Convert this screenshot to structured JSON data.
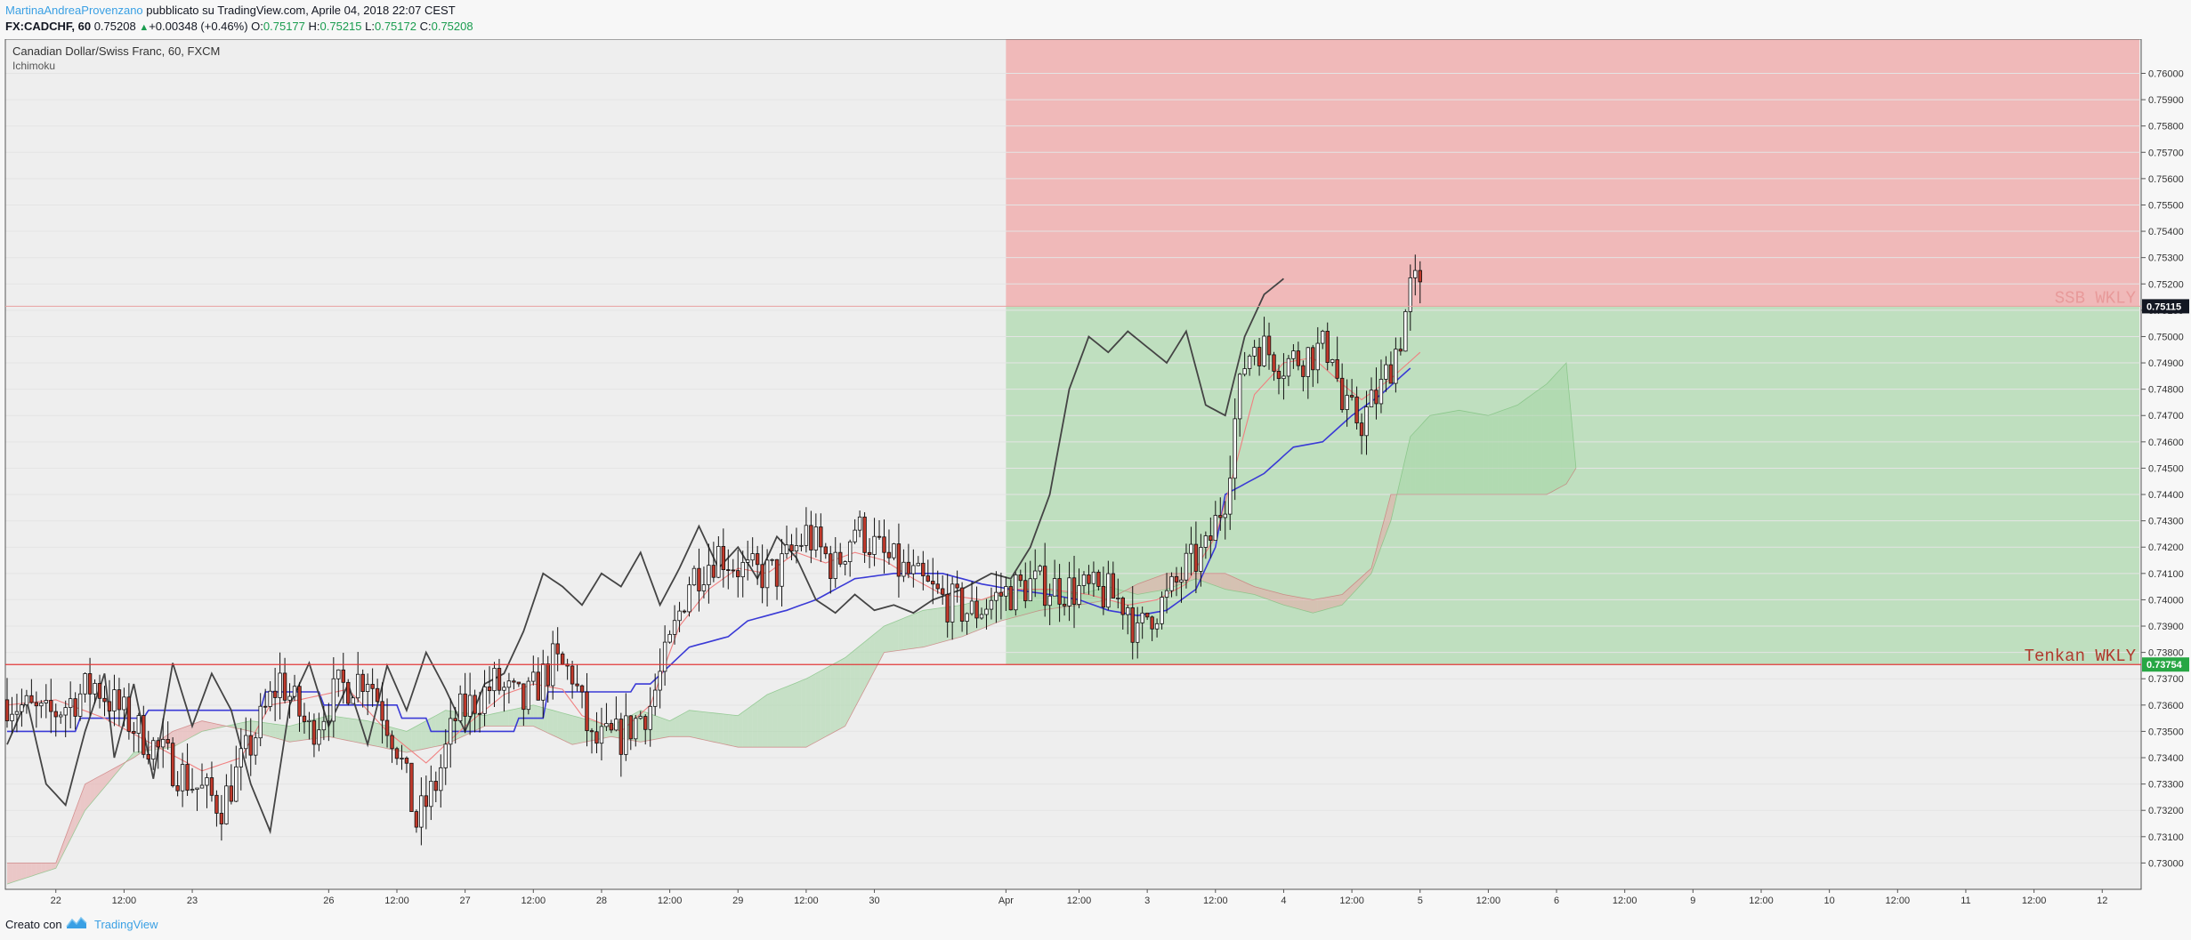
{
  "header": {
    "author": "MartinaAndreaProvenzano",
    "published_text": " pubblicato su TradingView.com, Aprile 04, 2018 22:07 CEST",
    "symbol": "FX:CADCHF, 60",
    "last_price": "0.75208",
    "change_arrow": "▲",
    "change": "+0.00348 (+0.46%)",
    "open_label": "O:",
    "open": "0.75177",
    "high_label": "H:",
    "high": "0.75215",
    "low_label": "L:",
    "low": "0.75172",
    "close_label": "C:",
    "close": "0.75208"
  },
  "footer": {
    "created_with": "Creato con",
    "brand": "TradingView"
  },
  "colors": {
    "pane_bg": "#eeeeee",
    "risk_zone": "#f0b9b9",
    "reward_zone": "#bfdfbf",
    "bull_candle": "#ffffff",
    "bear_candle": "#c0392b",
    "tenkan": "#f08080",
    "kijun": "#3a3ad6",
    "chikou": "#444444",
    "kumo_bull": "#a5d6a5",
    "kumo_bear": "#e8a8a8",
    "ssb_label": "#e89a9a",
    "tenkan_label": "#b03a2e",
    "tenkan_tag": "#27a744",
    "current_tag": "#131722"
  },
  "chart_data": {
    "type": "candlestick",
    "title": "Canadian Dollar/Swiss Franc, 60, FXCM",
    "indicator": "Ichimoku",
    "ylim": [
      0.729,
      0.7613
    ],
    "y_ticks": [
      0.73,
      0.731,
      0.732,
      0.733,
      0.734,
      0.735,
      0.736,
      0.737,
      0.738,
      0.739,
      0.74,
      0.741,
      0.742,
      0.743,
      0.744,
      0.745,
      0.746,
      0.747,
      0.748,
      0.749,
      0.75,
      0.751,
      0.752,
      0.753,
      0.754,
      0.755,
      0.756,
      0.757,
      0.758,
      0.759,
      0.76
    ],
    "y_tick_labels": [
      "0.73000",
      "0.73100",
      "0.73200",
      "0.73300",
      "0.73400",
      "0.73500",
      "0.73600",
      "0.73700",
      "0.73800",
      "0.73900",
      "0.74000",
      "0.74100",
      "0.74200",
      "0.74300",
      "0.74400",
      "0.74500",
      "0.74600",
      "0.74700",
      "0.74800",
      "0.74900",
      "0.75000",
      "0.75100",
      "0.75200",
      "0.75300",
      "0.75400",
      "0.75500",
      "0.75600",
      "0.75700",
      "0.75800",
      "0.75900",
      "0.76000"
    ],
    "x_ticks": [
      {
        "label": "22",
        "bar": 10
      },
      {
        "label": "12:00",
        "bar": 24
      },
      {
        "label": "23",
        "bar": 38
      },
      {
        "label": "26",
        "bar": 66
      },
      {
        "label": "12:00",
        "bar": 80
      },
      {
        "label": "27",
        "bar": 94
      },
      {
        "label": "12:00",
        "bar": 108
      },
      {
        "label": "28",
        "bar": 122
      },
      {
        "label": "12:00",
        "bar": 136
      },
      {
        "label": "29",
        "bar": 150
      },
      {
        "label": "12:00",
        "bar": 164
      },
      {
        "label": "30",
        "bar": 178
      },
      {
        "label": "Apr",
        "bar": 205
      },
      {
        "label": "12:00",
        "bar": 220
      },
      {
        "label": "3",
        "bar": 234
      },
      {
        "label": "12:00",
        "bar": 248
      },
      {
        "label": "4",
        "bar": 262
      },
      {
        "label": "12:00",
        "bar": 276
      },
      {
        "label": "5",
        "bar": 290
      },
      {
        "label": "12:00",
        "bar": 304
      },
      {
        "label": "6",
        "bar": 318
      },
      {
        "label": "12:00",
        "bar": 332
      },
      {
        "label": "9",
        "bar": 346
      },
      {
        "label": "12:00",
        "bar": 360
      },
      {
        "label": "10",
        "bar": 374
      },
      {
        "label": "12:00",
        "bar": 388
      },
      {
        "label": "11",
        "bar": 402
      },
      {
        "label": "12:00",
        "bar": 416
      },
      {
        "label": "12",
        "bar": 430
      }
    ],
    "candle_keypoints": [
      [
        0,
        0.7362
      ],
      [
        8,
        0.7355
      ],
      [
        18,
        0.7368
      ],
      [
        28,
        0.7348
      ],
      [
        38,
        0.733
      ],
      [
        44,
        0.7322
      ],
      [
        50,
        0.7345
      ],
      [
        56,
        0.737
      ],
      [
        62,
        0.735
      ],
      [
        68,
        0.7366
      ],
      [
        74,
        0.7372
      ],
      [
        80,
        0.7345
      ],
      [
        84,
        0.7315
      ],
      [
        88,
        0.733
      ],
      [
        92,
        0.7355
      ],
      [
        100,
        0.7368
      ],
      [
        106,
        0.736
      ],
      [
        112,
        0.7376
      ],
      [
        116,
        0.7372
      ],
      [
        120,
        0.7345
      ],
      [
        126,
        0.7348
      ],
      [
        132,
        0.736
      ],
      [
        136,
        0.7382
      ],
      [
        140,
        0.7408
      ],
      [
        146,
        0.7418
      ],
      [
        152,
        0.741
      ],
      [
        158,
        0.741
      ],
      [
        164,
        0.7425
      ],
      [
        170,
        0.7412
      ],
      [
        174,
        0.7428
      ],
      [
        180,
        0.7416
      ],
      [
        186,
        0.7408
      ],
      [
        192,
        0.74
      ],
      [
        198,
        0.7395
      ],
      [
        204,
        0.7402
      ],
      [
        210,
        0.7406
      ],
      [
        218,
        0.7404
      ],
      [
        226,
        0.7402
      ],
      [
        230,
        0.7398
      ],
      [
        232,
        0.7385
      ],
      [
        234,
        0.7394
      ],
      [
        238,
        0.74
      ],
      [
        242,
        0.7412
      ],
      [
        246,
        0.7418
      ],
      [
        250,
        0.744
      ],
      [
        252,
        0.7468
      ],
      [
        254,
        0.749
      ],
      [
        256,
        0.7498
      ],
      [
        262,
        0.749
      ],
      [
        268,
        0.7494
      ],
      [
        272,
        0.7496
      ],
      [
        274,
        0.7472
      ],
      [
        278,
        0.7468
      ],
      [
        282,
        0.748
      ],
      [
        286,
        0.75
      ],
      [
        288,
        0.7518
      ],
      [
        290,
        0.75208
      ]
    ],
    "kijun_keypoints": [
      [
        0,
        0.735
      ],
      [
        14,
        0.735
      ],
      [
        15,
        0.7355
      ],
      [
        28,
        0.7355
      ],
      [
        29,
        0.7358
      ],
      [
        52,
        0.7358
      ],
      [
        53,
        0.7365
      ],
      [
        64,
        0.7365
      ],
      [
        65,
        0.736
      ],
      [
        80,
        0.736
      ],
      [
        81,
        0.7355
      ],
      [
        86,
        0.7355
      ],
      [
        87,
        0.735
      ],
      [
        104,
        0.735
      ],
      [
        105,
        0.7355
      ],
      [
        110,
        0.7355
      ],
      [
        111,
        0.7365
      ],
      [
        128,
        0.7365
      ],
      [
        129,
        0.7368
      ],
      [
        132,
        0.7368
      ],
      [
        140,
        0.7382
      ],
      [
        148,
        0.7386
      ],
      [
        152,
        0.7392
      ],
      [
        160,
        0.7396
      ],
      [
        166,
        0.74
      ],
      [
        174,
        0.7408
      ],
      [
        182,
        0.741
      ],
      [
        192,
        0.741
      ],
      [
        200,
        0.7406
      ],
      [
        206,
        0.7404
      ],
      [
        214,
        0.7402
      ],
      [
        220,
        0.74
      ],
      [
        226,
        0.7396
      ],
      [
        232,
        0.7394
      ],
      [
        238,
        0.7396
      ],
      [
        244,
        0.7404
      ],
      [
        248,
        0.742
      ],
      [
        250,
        0.744
      ],
      [
        254,
        0.7444
      ],
      [
        258,
        0.7448
      ],
      [
        264,
        0.7458
      ],
      [
        270,
        0.746
      ],
      [
        276,
        0.747
      ],
      [
        282,
        0.7478
      ],
      [
        288,
        0.7488
      ]
    ],
    "tenkan_keypoints": [
      [
        0,
        0.736
      ],
      [
        10,
        0.7362
      ],
      [
        20,
        0.7355
      ],
      [
        30,
        0.7345
      ],
      [
        40,
        0.7335
      ],
      [
        48,
        0.734
      ],
      [
        54,
        0.736
      ],
      [
        60,
        0.7362
      ],
      [
        70,
        0.7366
      ],
      [
        78,
        0.735
      ],
      [
        86,
        0.7338
      ],
      [
        94,
        0.7352
      ],
      [
        102,
        0.7364
      ],
      [
        108,
        0.7368
      ],
      [
        114,
        0.7366
      ],
      [
        118,
        0.7356
      ],
      [
        126,
        0.735
      ],
      [
        132,
        0.736
      ],
      [
        138,
        0.739
      ],
      [
        144,
        0.7404
      ],
      [
        150,
        0.7412
      ],
      [
        156,
        0.741
      ],
      [
        162,
        0.7418
      ],
      [
        168,
        0.7414
      ],
      [
        174,
        0.7418
      ],
      [
        180,
        0.7415
      ],
      [
        186,
        0.7408
      ],
      [
        192,
        0.7402
      ],
      [
        200,
        0.74
      ],
      [
        206,
        0.7404
      ],
      [
        214,
        0.7404
      ],
      [
        222,
        0.7402
      ],
      [
        230,
        0.7398
      ],
      [
        236,
        0.74
      ],
      [
        242,
        0.7406
      ],
      [
        248,
        0.7424
      ],
      [
        252,
        0.745
      ],
      [
        256,
        0.7478
      ],
      [
        262,
        0.749
      ],
      [
        268,
        0.7492
      ],
      [
        274,
        0.7482
      ],
      [
        278,
        0.7476
      ],
      [
        284,
        0.7484
      ],
      [
        290,
        0.7494
      ]
    ],
    "chikou_keypoints": [
      [
        0,
        0.7345
      ],
      [
        4,
        0.7362
      ],
      [
        8,
        0.733
      ],
      [
        12,
        0.7322
      ],
      [
        16,
        0.735
      ],
      [
        20,
        0.7372
      ],
      [
        22,
        0.734
      ],
      [
        26,
        0.7368
      ],
      [
        30,
        0.7332
      ],
      [
        34,
        0.7376
      ],
      [
        38,
        0.7352
      ],
      [
        42,
        0.7372
      ],
      [
        46,
        0.7358
      ],
      [
        50,
        0.733
      ],
      [
        54,
        0.7312
      ],
      [
        58,
        0.736
      ],
      [
        62,
        0.7376
      ],
      [
        66,
        0.7352
      ],
      [
        70,
        0.7368
      ],
      [
        74,
        0.7345
      ],
      [
        78,
        0.7375
      ],
      [
        82,
        0.7358
      ],
      [
        86,
        0.738
      ],
      [
        90,
        0.7366
      ],
      [
        94,
        0.735
      ],
      [
        98,
        0.7368
      ],
      [
        102,
        0.7372
      ],
      [
        106,
        0.7388
      ],
      [
        110,
        0.741
      ],
      [
        114,
        0.7405
      ],
      [
        118,
        0.7398
      ],
      [
        122,
        0.741
      ],
      [
        126,
        0.7405
      ],
      [
        130,
        0.7418
      ],
      [
        134,
        0.7398
      ],
      [
        138,
        0.7412
      ],
      [
        142,
        0.7428
      ],
      [
        146,
        0.7412
      ],
      [
        150,
        0.742
      ],
      [
        154,
        0.7408
      ],
      [
        158,
        0.7424
      ],
      [
        162,
        0.7416
      ],
      [
        166,
        0.74
      ],
      [
        170,
        0.7395
      ],
      [
        174,
        0.7402
      ],
      [
        178,
        0.7396
      ],
      [
        182,
        0.7398
      ],
      [
        186,
        0.7395
      ],
      [
        190,
        0.74
      ],
      [
        196,
        0.7404
      ],
      [
        202,
        0.741
      ],
      [
        206,
        0.7408
      ],
      [
        210,
        0.742
      ],
      [
        214,
        0.744
      ],
      [
        218,
        0.748
      ],
      [
        222,
        0.75
      ],
      [
        226,
        0.7494
      ],
      [
        230,
        0.7502
      ],
      [
        234,
        0.7496
      ],
      [
        238,
        0.749
      ],
      [
        242,
        0.7502
      ],
      [
        246,
        0.7474
      ],
      [
        250,
        0.747
      ],
      [
        254,
        0.75
      ],
      [
        258,
        0.7516
      ],
      [
        262,
        0.7522
      ]
    ],
    "ssa_keypoints": [
      [
        0,
        0.7292
      ],
      [
        10,
        0.7298
      ],
      [
        16,
        0.732
      ],
      [
        26,
        0.7342
      ],
      [
        34,
        0.7344
      ],
      [
        40,
        0.735
      ],
      [
        50,
        0.7354
      ],
      [
        58,
        0.7352
      ],
      [
        66,
        0.7356
      ],
      [
        74,
        0.7354
      ],
      [
        82,
        0.735
      ],
      [
        90,
        0.7358
      ],
      [
        98,
        0.7356
      ],
      [
        108,
        0.736
      ],
      [
        116,
        0.7356
      ],
      [
        124,
        0.7352
      ],
      [
        130,
        0.7358
      ],
      [
        136,
        0.7354
      ],
      [
        140,
        0.7358
      ],
      [
        150,
        0.7356
      ],
      [
        156,
        0.7364
      ],
      [
        164,
        0.737
      ],
      [
        172,
        0.7378
      ],
      [
        180,
        0.739
      ],
      [
        188,
        0.7396
      ],
      [
        196,
        0.7398
      ],
      [
        204,
        0.7402
      ],
      [
        212,
        0.7404
      ],
      [
        220,
        0.7402
      ],
      [
        226,
        0.7405
      ],
      [
        232,
        0.7402
      ],
      [
        238,
        0.7404
      ],
      [
        244,
        0.7408
      ],
      [
        250,
        0.7404
      ],
      [
        256,
        0.7402
      ],
      [
        262,
        0.7398
      ],
      [
        268,
        0.7395
      ],
      [
        274,
        0.7398
      ],
      [
        280,
        0.741
      ],
      [
        284,
        0.743
      ],
      [
        288,
        0.7462
      ],
      [
        292,
        0.747
      ],
      [
        298,
        0.7472
      ],
      [
        304,
        0.747
      ],
      [
        310,
        0.7474
      ],
      [
        316,
        0.7482
      ],
      [
        320,
        0.749
      ],
      [
        322,
        0.745
      ]
    ],
    "ssb_keypoints": [
      [
        0,
        0.73
      ],
      [
        10,
        0.73
      ],
      [
        16,
        0.733
      ],
      [
        26,
        0.734
      ],
      [
        34,
        0.735
      ],
      [
        40,
        0.7354
      ],
      [
        50,
        0.735
      ],
      [
        58,
        0.7346
      ],
      [
        66,
        0.7348
      ],
      [
        74,
        0.7345
      ],
      [
        82,
        0.7342
      ],
      [
        90,
        0.7345
      ],
      [
        98,
        0.7352
      ],
      [
        108,
        0.7352
      ],
      [
        116,
        0.7345
      ],
      [
        124,
        0.7348
      ],
      [
        130,
        0.7346
      ],
      [
        136,
        0.7348
      ],
      [
        140,
        0.7348
      ],
      [
        150,
        0.7344
      ],
      [
        156,
        0.7344
      ],
      [
        164,
        0.7344
      ],
      [
        172,
        0.7352
      ],
      [
        180,
        0.738
      ],
      [
        188,
        0.7382
      ],
      [
        196,
        0.7386
      ],
      [
        204,
        0.7392
      ],
      [
        212,
        0.7396
      ],
      [
        220,
        0.7398
      ],
      [
        226,
        0.74
      ],
      [
        232,
        0.7406
      ],
      [
        238,
        0.741
      ],
      [
        244,
        0.741
      ],
      [
        250,
        0.741
      ],
      [
        256,
        0.7405
      ],
      [
        262,
        0.7402
      ],
      [
        268,
        0.74
      ],
      [
        274,
        0.7402
      ],
      [
        280,
        0.7412
      ],
      [
        284,
        0.744
      ],
      [
        288,
        0.744
      ],
      [
        292,
        0.744
      ],
      [
        298,
        0.744
      ],
      [
        304,
        0.744
      ],
      [
        310,
        0.744
      ],
      [
        316,
        0.744
      ],
      [
        320,
        0.7444
      ],
      [
        322,
        0.745
      ]
    ],
    "horizontal_lines": [
      {
        "label": "SSB WKLY",
        "price": 0.75115,
        "tag": "0.75115"
      },
      {
        "label": "Tenkan WKLY",
        "price": 0.73754,
        "tag": "0.73754"
      }
    ],
    "position_zone": {
      "start_bar": 205,
      "end_bar": 443,
      "entry": 0.75115,
      "stop": 0.7613,
      "target": 0.73754
    }
  }
}
